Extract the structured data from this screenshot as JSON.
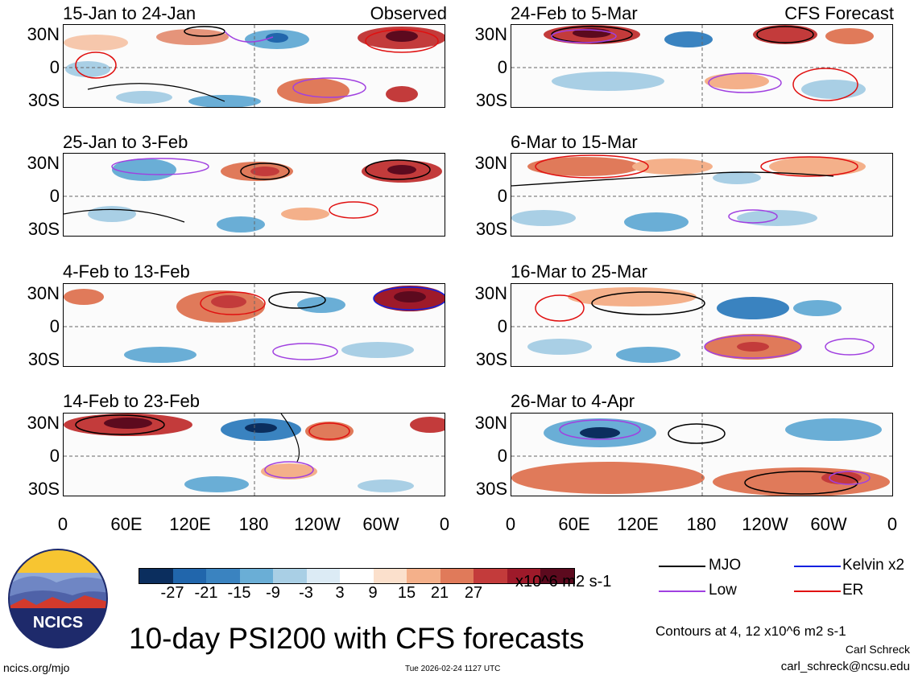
{
  "panels": [
    {
      "title": "15-Jan to 24-Jan",
      "tag": "Observed"
    },
    {
      "title": "25-Jan to 3-Feb",
      "tag": ""
    },
    {
      "title": "4-Feb to 13-Feb",
      "tag": ""
    },
    {
      "title": "14-Feb to 23-Feb",
      "tag": ""
    },
    {
      "title": "24-Feb to 5-Mar",
      "tag": "CFS Forecast"
    },
    {
      "title": "6-Mar to 15-Mar",
      "tag": ""
    },
    {
      "title": "16-Mar to 25-Mar",
      "tag": ""
    },
    {
      "title": "26-Mar to 4-Apr",
      "tag": ""
    }
  ],
  "lat_labels": [
    "30N",
    "0",
    "30S"
  ],
  "lon_labels": [
    "0",
    "60E",
    "120E",
    "180",
    "120W",
    "60W",
    "0"
  ],
  "colorbar": {
    "labels": [
      "-27",
      "-21",
      "-15",
      "-9",
      "-3",
      "3",
      "9",
      "15",
      "21",
      "27"
    ],
    "colors": [
      "#0b2e5e",
      "#2166ac",
      "#3a83c0",
      "#6aaed6",
      "#a9cfe5",
      "#dcebf5",
      "#ffffff",
      "#fbe0cc",
      "#f4b08a",
      "#e07a5a",
      "#c33b3b",
      "#9e1a2a",
      "#5c0a1e"
    ],
    "unit": "x10^6 m2 s-1"
  },
  "legend": {
    "mjo": "MJO",
    "low": "Low",
    "kelvin": "Kelvin x2",
    "er": "ER",
    "mjo_color": "#000000",
    "low_color": "#a040e0",
    "kelvin_color": "#1020e0",
    "er_color": "#e01010"
  },
  "title": "10-day PSI200 with CFS forecasts",
  "contours_note": "Contours at 4, 12 x10^6 m2 s-1",
  "author": "Carl Schreck",
  "email": "carl_schreck@ncsu.edu",
  "website": "ncics.org/mjo",
  "timestamp": "Tue 2026-02-24 1127 UTC",
  "logo_text": "NCICS"
}
